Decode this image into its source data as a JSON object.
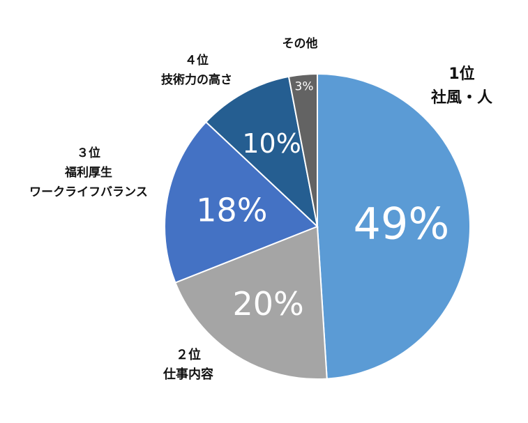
{
  "chart_data": {
    "type": "pie",
    "title": "",
    "slices": [
      {
        "rank": "1位",
        "label": "社風・人",
        "value": 49,
        "display": "49%",
        "color": "#5b9bd5"
      },
      {
        "rank": "２位",
        "label": "仕事内容",
        "value": 20,
        "display": "20%",
        "color": "#a5a5a5"
      },
      {
        "rank": "３位",
        "label": "福利厚生\nワークライフバランス",
        "value": 18,
        "display": "18%",
        "color": "#4472c4"
      },
      {
        "rank": "４位",
        "label": "技術力の高さ",
        "value": 10,
        "display": "10%",
        "color": "#255e91"
      },
      {
        "rank": "",
        "label": "その他",
        "value": 3,
        "display": "3%",
        "color": "#636363"
      }
    ],
    "start_angle_deg": 0,
    "direction": "clockwise",
    "legend": "none"
  }
}
